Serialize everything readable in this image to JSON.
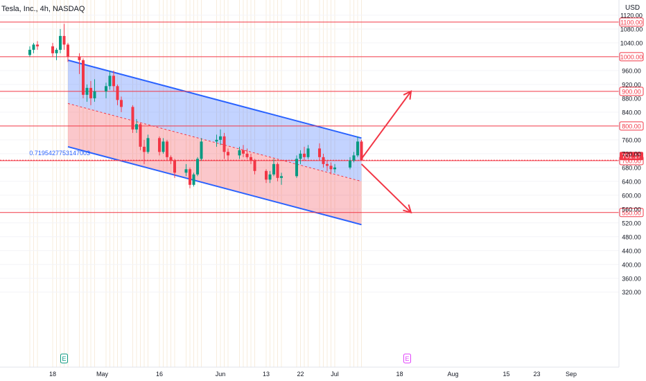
{
  "header": {
    "title": "Tesla, Inc., 4h, NASDAQ",
    "currency": "USD"
  },
  "chart_data": {
    "type": "candlestick",
    "symbol": "Tesla, Inc.",
    "interval": "4h",
    "exchange": "NASDAQ",
    "currency": "USD",
    "ylim": [
      290,
      1140
    ],
    "y_ticks": [
      320,
      360,
      400,
      440,
      480,
      520,
      560,
      600,
      640,
      680,
      720,
      760,
      840,
      880,
      920,
      960,
      1040,
      1080,
      1120
    ],
    "x_ticks": [
      "18",
      "May",
      "16",
      "Jun",
      "13",
      "22",
      "Jul",
      "18",
      "Aug",
      "15",
      "23",
      "Sep"
    ],
    "horizontal_levels": [
      {
        "label": "1100.00",
        "value": 1100
      },
      {
        "label": "1000.00",
        "value": 1000
      },
      {
        "label": "900.00",
        "value": 900
      },
      {
        "label": "800.00",
        "value": 800
      },
      {
        "label": "700.00",
        "value": 700
      },
      {
        "label": "550.00",
        "value": 550
      }
    ],
    "last_price": {
      "label": "701.17",
      "value": 701.17
    },
    "channel": {
      "upper": [
        [
          "Apr 22",
          990
        ],
        [
          "Jul 8",
          765
        ]
      ],
      "middle": [
        [
          "Apr 22",
          865
        ],
        [
          "Jul 8",
          640
        ]
      ],
      "lower": [
        [
          "Apr 22",
          740
        ],
        [
          "Jul 8",
          515
        ]
      ]
    },
    "channel_annotation": "0.7195427753147003",
    "earnings_markers": [
      "E",
      "E"
    ],
    "projections": [
      {
        "direction": "up",
        "from": [
          "Jul 8",
          705
        ],
        "to": [
          "Jul 21",
          900
        ]
      },
      {
        "direction": "down",
        "from": [
          "Jul 8",
          690
        ],
        "to": [
          "Jul 21",
          550
        ]
      }
    ],
    "candles": [
      {
        "date": "Apr 12",
        "o": 1005,
        "h": 1030,
        "l": 1000,
        "c": 1020
      },
      {
        "date": "Apr 13",
        "o": 1020,
        "h": 1040,
        "l": 1010,
        "c": 1035
      },
      {
        "date": "Apr 14",
        "o": 1035,
        "h": 1045,
        "l": 1020,
        "c": 1030
      },
      {
        "date": "Apr 18",
        "o": 1030,
        "h": 1040,
        "l": 1000,
        "c": 1010
      },
      {
        "date": "Apr 19",
        "o": 1010,
        "h": 1025,
        "l": 990,
        "c": 1020
      },
      {
        "date": "Apr 20",
        "o": 1020,
        "h": 1080,
        "l": 1010,
        "c": 1060
      },
      {
        "date": "Apr 21",
        "o": 1060,
        "h": 1095,
        "l": 1020,
        "c": 1035
      },
      {
        "date": "Apr 22",
        "o": 1035,
        "h": 1040,
        "l": 985,
        "c": 1000
      },
      {
        "date": "Apr 25",
        "o": 1000,
        "h": 1010,
        "l": 950,
        "c": 990
      },
      {
        "date": "Apr 26",
        "o": 990,
        "h": 995,
        "l": 880,
        "c": 890
      },
      {
        "date": "Apr 27",
        "o": 890,
        "h": 920,
        "l": 870,
        "c": 910
      },
      {
        "date": "Apr 28",
        "o": 910,
        "h": 930,
        "l": 860,
        "c": 880
      },
      {
        "date": "Apr 29",
        "o": 880,
        "h": 935,
        "l": 870,
        "c": 900
      },
      {
        "date": "May 2",
        "o": 900,
        "h": 925,
        "l": 880,
        "c": 915
      },
      {
        "date": "May 3",
        "o": 915,
        "h": 960,
        "l": 905,
        "c": 945
      },
      {
        "date": "May 4",
        "o": 945,
        "h": 960,
        "l": 900,
        "c": 915
      },
      {
        "date": "May 5",
        "o": 915,
        "h": 920,
        "l": 860,
        "c": 875
      },
      {
        "date": "May 6",
        "o": 875,
        "h": 885,
        "l": 840,
        "c": 855
      },
      {
        "date": "May 9",
        "o": 855,
        "h": 860,
        "l": 780,
        "c": 790
      },
      {
        "date": "May 10",
        "o": 790,
        "h": 820,
        "l": 780,
        "c": 805
      },
      {
        "date": "May 11",
        "o": 805,
        "h": 810,
        "l": 730,
        "c": 740
      },
      {
        "date": "May 12",
        "o": 740,
        "h": 760,
        "l": 690,
        "c": 725
      },
      {
        "date": "May 13",
        "o": 725,
        "h": 775,
        "l": 720,
        "c": 765
      },
      {
        "date": "May 16",
        "o": 765,
        "h": 770,
        "l": 715,
        "c": 725
      },
      {
        "date": "May 17",
        "o": 725,
        "h": 765,
        "l": 720,
        "c": 755
      },
      {
        "date": "May 18",
        "o": 755,
        "h": 760,
        "l": 700,
        "c": 710
      },
      {
        "date": "May 19",
        "o": 710,
        "h": 715,
        "l": 690,
        "c": 700
      },
      {
        "date": "May 20",
        "o": 700,
        "h": 705,
        "l": 650,
        "c": 665
      },
      {
        "date": "May 23",
        "o": 665,
        "h": 690,
        "l": 655,
        "c": 675
      },
      {
        "date": "May 24",
        "o": 675,
        "h": 680,
        "l": 620,
        "c": 630
      },
      {
        "date": "May 25",
        "o": 630,
        "h": 665,
        "l": 625,
        "c": 660
      },
      {
        "date": "May 26",
        "o": 660,
        "h": 710,
        "l": 655,
        "c": 705
      },
      {
        "date": "May 27",
        "o": 705,
        "h": 765,
        "l": 700,
        "c": 755
      },
      {
        "date": "May 31",
        "o": 755,
        "h": 775,
        "l": 740,
        "c": 760
      },
      {
        "date": "Jun 1",
        "o": 760,
        "h": 790,
        "l": 745,
        "c": 770
      },
      {
        "date": "Jun 2",
        "o": 770,
        "h": 780,
        "l": 705,
        "c": 725
      },
      {
        "date": "Jun 3",
        "o": 725,
        "h": 735,
        "l": 700,
        "c": 715
      },
      {
        "date": "Jun 6",
        "o": 715,
        "h": 740,
        "l": 705,
        "c": 730
      },
      {
        "date": "Jun 7",
        "o": 730,
        "h": 745,
        "l": 710,
        "c": 720
      },
      {
        "date": "Jun 8",
        "o": 720,
        "h": 735,
        "l": 705,
        "c": 710
      },
      {
        "date": "Jun 9",
        "o": 710,
        "h": 720,
        "l": 690,
        "c": 700
      },
      {
        "date": "Jun 10",
        "o": 700,
        "h": 705,
        "l": 660,
        "c": 670
      },
      {
        "date": "Jun 13",
        "o": 670,
        "h": 675,
        "l": 635,
        "c": 645
      },
      {
        "date": "Jun 14",
        "o": 645,
        "h": 670,
        "l": 635,
        "c": 660
      },
      {
        "date": "Jun 15",
        "o": 660,
        "h": 705,
        "l": 655,
        "c": 690
      },
      {
        "date": "Jun 16",
        "o": 690,
        "h": 695,
        "l": 640,
        "c": 650
      },
      {
        "date": "Jun 17",
        "o": 650,
        "h": 665,
        "l": 630,
        "c": 655
      },
      {
        "date": "Jun 21",
        "o": 655,
        "h": 715,
        "l": 650,
        "c": 705
      },
      {
        "date": "Jun 22",
        "o": 705,
        "h": 730,
        "l": 690,
        "c": 720
      },
      {
        "date": "Jun 23",
        "o": 720,
        "h": 740,
        "l": 700,
        "c": 710
      },
      {
        "date": "Jun 24",
        "o": 710,
        "h": 745,
        "l": 705,
        "c": 735
      },
      {
        "date": "Jun 27",
        "o": 735,
        "h": 750,
        "l": 700,
        "c": 710
      },
      {
        "date": "Jun 28",
        "o": 710,
        "h": 720,
        "l": 680,
        "c": 690
      },
      {
        "date": "Jun 29",
        "o": 690,
        "h": 700,
        "l": 670,
        "c": 685
      },
      {
        "date": "Jun 30",
        "o": 685,
        "h": 695,
        "l": 660,
        "c": 675
      },
      {
        "date": "Jul 1",
        "o": 675,
        "h": 690,
        "l": 665,
        "c": 680
      },
      {
        "date": "Jul 5",
        "o": 680,
        "h": 710,
        "l": 675,
        "c": 700
      },
      {
        "date": "Jul 6",
        "o": 700,
        "h": 725,
        "l": 695,
        "c": 715
      },
      {
        "date": "Jul 7",
        "o": 715,
        "h": 770,
        "l": 710,
        "c": 755
      },
      {
        "date": "Jul 8",
        "o": 755,
        "h": 760,
        "l": 700,
        "c": 701
      }
    ]
  }
}
